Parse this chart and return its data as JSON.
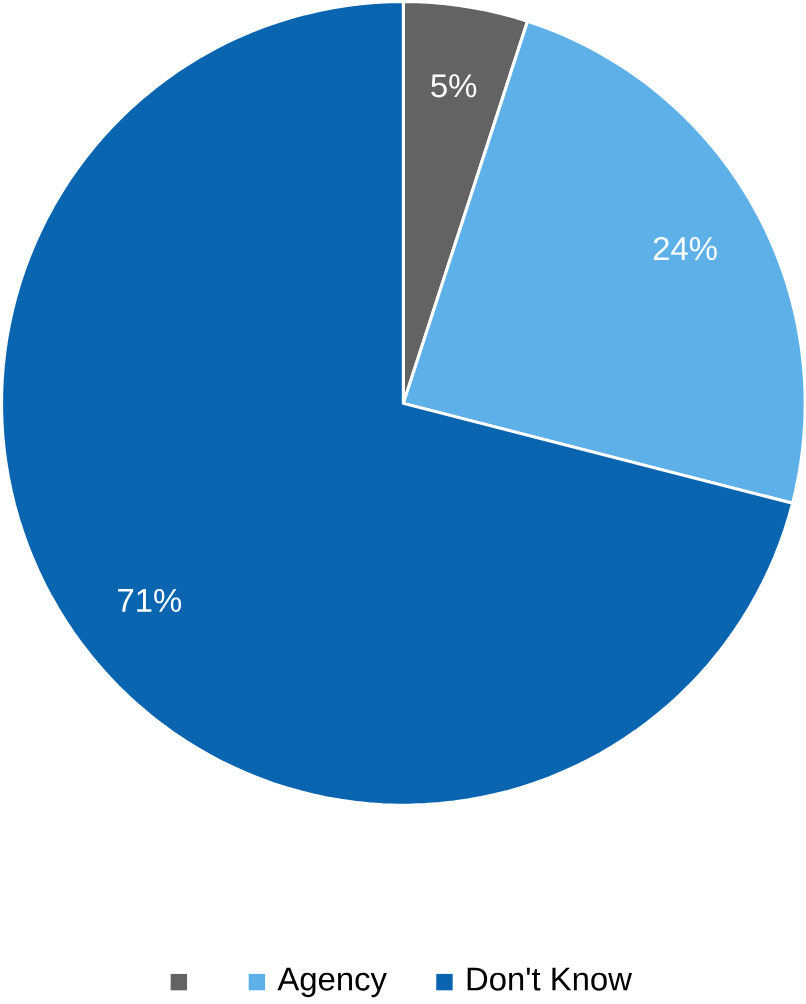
{
  "chart_data": {
    "type": "pie",
    "categories": [
      null,
      "Agency",
      "Don't Know"
    ],
    "values": [
      5,
      24,
      71
    ],
    "value_labels": [
      "5%",
      "24%",
      "71%"
    ],
    "colors": [
      "#636363",
      "#5eb0e8",
      "#0a65b0"
    ],
    "legend": "bottom"
  }
}
